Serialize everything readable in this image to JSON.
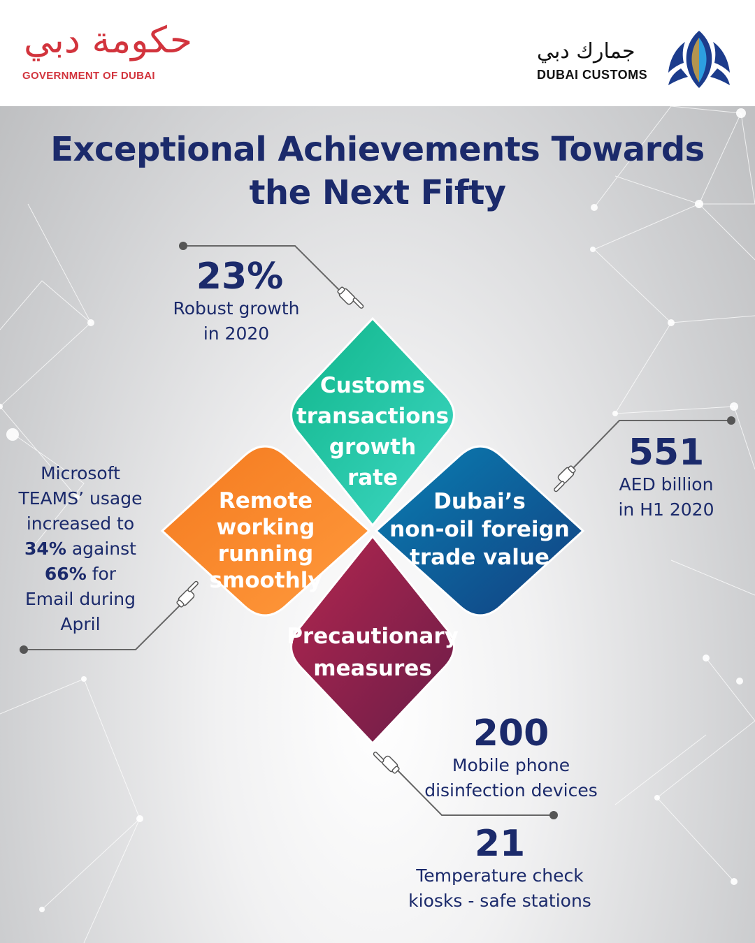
{
  "header": {
    "gov_logo_arabic": "حكومة دبي",
    "gov_logo_english": "GOVERNMENT OF DUBAI",
    "customs_logo_arabic": "جمارك دبي",
    "customs_logo_english": "DUBAI CUSTOMS",
    "customs_emblem_icon": "falcon-emblem-icon"
  },
  "title": {
    "line1": "Exceptional Achievements Towards",
    "line2": "the Next Fifty"
  },
  "petals": {
    "top": {
      "line1": "Customs",
      "line2": "transactions",
      "line3": "growth",
      "line4": "rate",
      "color_from": "#0fb58a",
      "color_to": "#3fd8c4"
    },
    "left": {
      "line1": "Remote",
      "line2": "working running",
      "line3": "smoothly",
      "color_from": "#f47a1f",
      "color_to": "#ff9a3d"
    },
    "right": {
      "line1": "Dubai’s",
      "line2": "non-oil foreign",
      "line3": "trade value",
      "color_from": "#0a7fb3",
      "color_to": "#123f80"
    },
    "bottom": {
      "line1": "Precautionary",
      "line2": "measures",
      "color_from": "#b3264f",
      "color_to": "#6a1d48"
    }
  },
  "stats": {
    "growth": {
      "value": "23%",
      "line1": "Robust growth",
      "line2": "in 2020"
    },
    "trade": {
      "value": "551",
      "line1": "AED billion",
      "line2": "in H1 2020"
    },
    "teams": {
      "line1": "Microsoft",
      "line2": "TEAMS’ usage",
      "line3": "increased to",
      "bold1": "34%",
      "line4": " against",
      "bold2": "66%",
      "line5": " for",
      "line6": "Email during",
      "line7": "April"
    },
    "devices": {
      "value": "200",
      "line1": "Mobile phone",
      "line2": "disinfection devices"
    },
    "kiosks": {
      "value": "21",
      "line1": "Temperature check",
      "line2": "kiosks - safe stations"
    }
  },
  "icons": [
    "pointing-hand-icon"
  ],
  "colors": {
    "title": "#1b2a6b",
    "gov_red": "#d2343d",
    "connector": "#666666"
  }
}
